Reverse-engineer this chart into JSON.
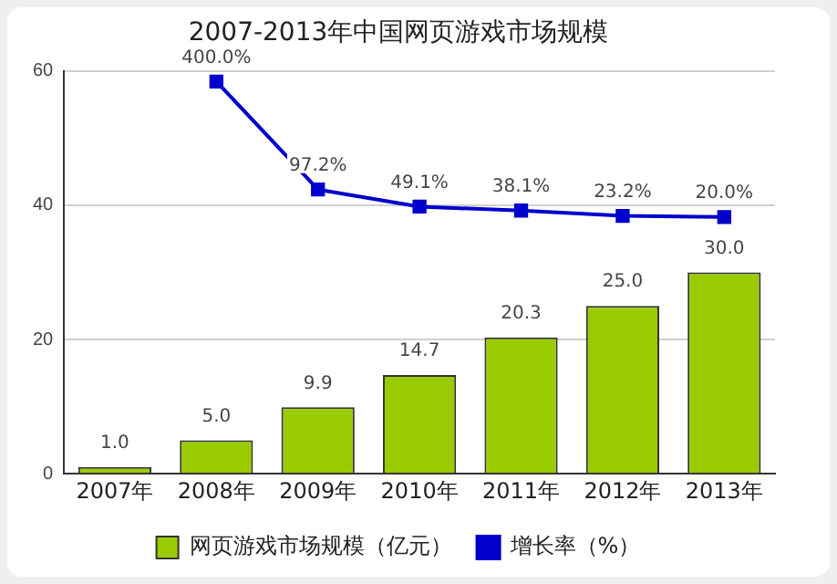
{
  "chart_data": {
    "type": "bar",
    "title": "2007-2013年中国网页游戏市场规模",
    "categories": [
      "2007年",
      "2008年",
      "2009年",
      "2010年",
      "2011年",
      "2012年",
      "2013年"
    ],
    "series": [
      {
        "name": "网页游戏市场规模（亿元）",
        "color": "#99cc00",
        "values": [
          1.0,
          5.0,
          9.9,
          14.7,
          20.3,
          25.0,
          30.0
        ],
        "value_labels": [
          "1.0",
          "5.0",
          "9.9",
          "14.7",
          "20.3",
          "25.0",
          "30.0"
        ]
      },
      {
        "name": "增长率（%）",
        "type": "line",
        "axis": "y2",
        "color": "#0000cc",
        "values": [
          null,
          400.0,
          97.2,
          49.1,
          38.1,
          23.2,
          20.0
        ],
        "value_labels": [
          null,
          "400.0%",
          "97.2%",
          "49.1%",
          "38.1%",
          "23.2%",
          "20.0%"
        ]
      }
    ],
    "ylim": [
      0,
      60
    ],
    "yticks": [
      0,
      20,
      40,
      60
    ],
    "y2lim": [
      -700,
      430
    ],
    "tick_labels": "xy",
    "grid": "y",
    "legend": "bottom",
    "marker": "square",
    "line_style": "solid"
  }
}
